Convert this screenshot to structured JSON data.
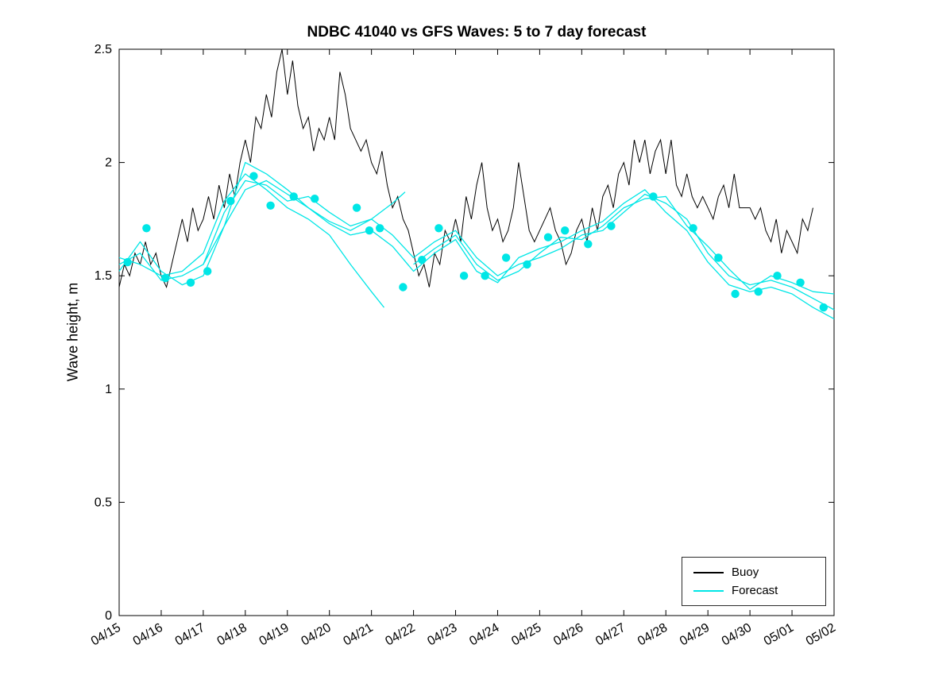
{
  "chart_data": {
    "type": "line",
    "title": "NDBC 41040 vs GFS Waves: 5 to 7 day forecast",
    "xlabel": "",
    "ylabel": "Wave height, m",
    "x_range": [
      0,
      17
    ],
    "y_range": [
      0,
      2.5
    ],
    "x_tick_labels": [
      "04/15",
      "04/16",
      "04/17",
      "04/18",
      "04/19",
      "04/20",
      "04/21",
      "04/22",
      "04/23",
      "04/24",
      "04/25",
      "04/26",
      "04/27",
      "04/28",
      "04/29",
      "04/30",
      "05/01",
      "05/02"
    ],
    "x_tick_positions": [
      0,
      1,
      2,
      3,
      4,
      5,
      6,
      7,
      8,
      9,
      10,
      11,
      12,
      13,
      14,
      15,
      16,
      17
    ],
    "y_ticks": [
      0,
      0.5,
      1,
      1.5,
      2,
      2.5
    ],
    "y_tick_labels": [
      "0",
      "0.5",
      "1",
      "1.5",
      "2",
      "2.5"
    ],
    "grid": false,
    "legend_position": "bottom-right",
    "legend_entries": [
      {
        "label": "Buoy",
        "color": "#000000"
      },
      {
        "label": "Forecast",
        "color": "#00e6e6"
      }
    ],
    "buoy_series": {
      "name": "Buoy",
      "color": "#000000",
      "start_day": 0,
      "step_days": 0.125,
      "values": [
        1.45,
        1.55,
        1.5,
        1.6,
        1.55,
        1.65,
        1.55,
        1.6,
        1.5,
        1.45,
        1.55,
        1.65,
        1.75,
        1.65,
        1.8,
        1.7,
        1.75,
        1.85,
        1.75,
        1.9,
        1.8,
        1.95,
        1.85,
        2.0,
        2.1,
        2.0,
        2.2,
        2.15,
        2.3,
        2.2,
        2.4,
        2.5,
        2.3,
        2.45,
        2.25,
        2.15,
        2.2,
        2.05,
        2.15,
        2.1,
        2.2,
        2.1,
        2.4,
        2.3,
        2.15,
        2.1,
        2.05,
        2.1,
        2.0,
        1.95,
        2.05,
        1.9,
        1.8,
        1.85,
        1.75,
        1.7,
        1.6,
        1.5,
        1.55,
        1.45,
        1.6,
        1.55,
        1.7,
        1.65,
        1.75,
        1.65,
        1.85,
        1.75,
        1.9,
        2.0,
        1.8,
        1.7,
        1.75,
        1.65,
        1.7,
        1.8,
        2.0,
        1.85,
        1.7,
        1.65,
        1.7,
        1.75,
        1.8,
        1.7,
        1.65,
        1.55,
        1.6,
        1.7,
        1.75,
        1.65,
        1.8,
        1.7,
        1.85,
        1.9,
        1.8,
        1.95,
        2.0,
        1.9,
        2.1,
        2.0,
        2.1,
        1.95,
        2.05,
        2.1,
        1.95,
        2.1,
        1.9,
        1.85,
        1.95,
        1.85,
        1.8,
        1.85,
        1.8,
        1.75,
        1.85,
        1.9,
        1.8,
        1.95,
        1.8,
        1.8,
        1.8,
        1.75,
        1.8,
        1.7,
        1.65,
        1.75,
        1.6,
        1.7,
        1.65,
        1.6,
        1.75,
        1.7,
        1.8
      ]
    },
    "forecast_color": "#00e6e6",
    "forecast_runs": [
      {
        "name": "forecast-run-1",
        "points": [
          [
            0,
            1.55
          ],
          [
            0.5,
            1.6
          ],
          [
            1,
            1.48
          ],
          [
            1.5,
            1.5
          ],
          [
            2,
            1.55
          ],
          [
            2.5,
            1.78
          ],
          [
            3,
            1.92
          ],
          [
            3.5,
            1.9
          ],
          [
            4,
            1.83
          ],
          [
            4.5,
            1.85
          ],
          [
            5,
            1.78
          ],
          [
            5.5,
            1.72
          ],
          [
            6,
            1.75
          ],
          [
            6.5,
            1.68
          ],
          [
            7,
            1.58
          ],
          [
            7.5,
            1.65
          ],
          [
            8,
            1.7
          ],
          [
            8.5,
            1.58
          ],
          [
            9,
            1.5
          ],
          [
            9.5,
            1.55
          ],
          [
            10,
            1.58
          ],
          [
            10.5,
            1.62
          ],
          [
            11,
            1.68
          ],
          [
            11.5,
            1.7
          ],
          [
            12,
            1.78
          ],
          [
            12.5,
            1.86
          ],
          [
            13,
            1.82
          ],
          [
            13.5,
            1.75
          ],
          [
            14,
            1.6
          ],
          [
            14.5,
            1.5
          ],
          [
            15,
            1.46
          ],
          [
            15.5,
            1.48
          ],
          [
            16,
            1.45
          ],
          [
            16.5,
            1.4
          ],
          [
            17,
            1.35
          ]
        ]
      },
      {
        "name": "forecast-run-2",
        "points": [
          [
            0,
            1.52
          ],
          [
            0.5,
            1.65
          ],
          [
            1,
            1.52
          ],
          [
            1.5,
            1.46
          ],
          [
            2,
            1.5
          ],
          [
            2.5,
            1.72
          ],
          [
            3,
            2.0
          ],
          [
            3.5,
            1.95
          ],
          [
            4,
            1.88
          ],
          [
            4.5,
            1.8
          ],
          [
            5,
            1.73
          ],
          [
            5.5,
            1.68
          ],
          [
            6,
            1.7
          ],
          [
            6.5,
            1.63
          ],
          [
            7,
            1.52
          ],
          [
            7.5,
            1.6
          ],
          [
            8,
            1.66
          ],
          [
            8.5,
            1.52
          ],
          [
            9,
            1.47
          ],
          [
            9.5,
            1.58
          ],
          [
            10,
            1.62
          ],
          [
            10.5,
            1.65
          ],
          [
            11,
            1.7
          ],
          [
            11.5,
            1.74
          ],
          [
            12,
            1.82
          ],
          [
            12.5,
            1.88
          ],
          [
            13,
            1.78
          ],
          [
            13.5,
            1.7
          ],
          [
            14,
            1.56
          ],
          [
            14.5,
            1.46
          ],
          [
            15,
            1.43
          ],
          [
            15.5,
            1.45
          ],
          [
            16,
            1.42
          ],
          [
            16.5,
            1.36
          ],
          [
            17,
            1.31
          ]
        ]
      },
      {
        "name": "forecast-run-3",
        "points": [
          [
            0,
            1.58
          ],
          [
            0.5,
            1.55
          ],
          [
            1,
            1.5
          ],
          [
            1.5,
            1.52
          ],
          [
            2,
            1.6
          ],
          [
            2.5,
            1.83
          ],
          [
            3,
            1.95
          ],
          [
            3.5,
            1.88
          ],
          [
            4,
            1.8
          ],
          [
            4.5,
            1.75
          ],
          [
            5,
            1.68
          ],
          [
            5.5,
            1.55
          ],
          [
            6,
            1.43
          ],
          [
            6.3,
            1.36
          ]
        ]
      },
      {
        "name": "forecast-run-4",
        "points": [
          [
            2,
            1.55
          ],
          [
            2.5,
            1.72
          ],
          [
            3,
            1.88
          ],
          [
            3.5,
            1.92
          ],
          [
            4,
            1.86
          ],
          [
            4.5,
            1.8
          ],
          [
            5,
            1.74
          ],
          [
            5.5,
            1.7
          ],
          [
            6,
            1.75
          ],
          [
            6.5,
            1.82
          ],
          [
            6.8,
            1.87
          ]
        ]
      },
      {
        "name": "forecast-run-5",
        "points": [
          [
            7,
            1.55
          ],
          [
            7.5,
            1.62
          ],
          [
            8,
            1.68
          ],
          [
            8.5,
            1.55
          ],
          [
            9,
            1.48
          ],
          [
            9.5,
            1.52
          ],
          [
            10,
            1.6
          ],
          [
            10.5,
            1.67
          ],
          [
            11,
            1.66
          ],
          [
            11.5,
            1.72
          ],
          [
            12,
            1.8
          ],
          [
            12.5,
            1.84
          ],
          [
            13,
            1.85
          ],
          [
            13.5,
            1.72
          ],
          [
            14,
            1.63
          ],
          [
            14.5,
            1.53
          ],
          [
            15,
            1.44
          ],
          [
            15.5,
            1.5
          ],
          [
            16,
            1.47
          ],
          [
            16.5,
            1.43
          ],
          [
            17,
            1.42
          ]
        ]
      }
    ],
    "forecast_markers": [
      [
        0.2,
        1.56
      ],
      [
        0.65,
        1.71
      ],
      [
        1.1,
        1.49
      ],
      [
        1.7,
        1.47
      ],
      [
        2.1,
        1.52
      ],
      [
        2.65,
        1.83
      ],
      [
        3.2,
        1.94
      ],
      [
        3.6,
        1.81
      ],
      [
        4.15,
        1.85
      ],
      [
        4.65,
        1.84
      ],
      [
        5.65,
        1.8
      ],
      [
        5.95,
        1.7
      ],
      [
        6.2,
        1.71
      ],
      [
        6.75,
        1.45
      ],
      [
        7.2,
        1.57
      ],
      [
        7.6,
        1.71
      ],
      [
        8.2,
        1.5
      ],
      [
        8.7,
        1.5
      ],
      [
        9.2,
        1.58
      ],
      [
        9.7,
        1.55
      ],
      [
        10.2,
        1.67
      ],
      [
        10.6,
        1.7
      ],
      [
        11.15,
        1.64
      ],
      [
        11.7,
        1.72
      ],
      [
        12.7,
        1.85
      ],
      [
        13.65,
        1.71
      ],
      [
        14.25,
        1.58
      ],
      [
        14.65,
        1.42
      ],
      [
        15.2,
        1.43
      ],
      [
        15.65,
        1.5
      ],
      [
        16.2,
        1.47
      ],
      [
        16.75,
        1.36
      ]
    ]
  }
}
